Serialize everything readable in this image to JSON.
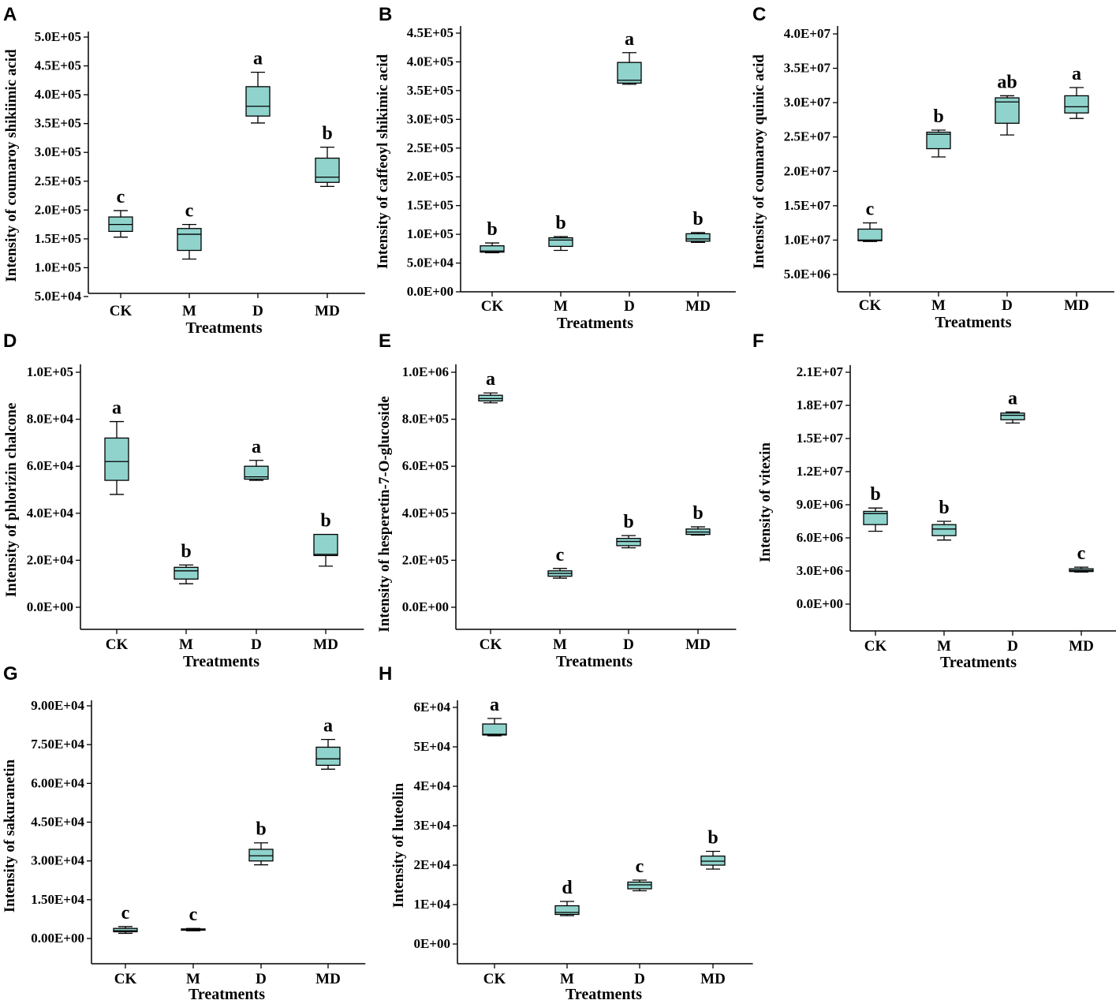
{
  "figure": {
    "colors": {
      "box_fill": "#8FD3CC",
      "stroke": "#000000",
      "background": "#ffffff"
    }
  },
  "chart_data": [
    {
      "panel": "A",
      "type": "box",
      "categories": [
        "CK",
        "M",
        "D",
        "MD"
      ],
      "xlabel": "Treatments",
      "ylabel": "Intensity of coumaroy shikiimic acid",
      "yticks": [
        50000,
        100000,
        150000,
        200000,
        250000,
        300000,
        350000,
        400000,
        450000,
        500000
      ],
      "ytick_labels": [
        "5.0E+04",
        "1.0E+05",
        "1.5E+05",
        "2.0E+05",
        "2.5E+05",
        "3.0E+05",
        "3.5E+05",
        "4.0E+05",
        "4.5E+05",
        "5.0E+05"
      ],
      "boxes": [
        {
          "min": 153000,
          "q1": 163000,
          "median": 175000,
          "q3": 188000,
          "max": 199000
        },
        {
          "min": 115000,
          "q1": 130000,
          "median": 158000,
          "q3": 168000,
          "max": 175000
        },
        {
          "min": 351000,
          "q1": 363000,
          "median": 380000,
          "q3": 414000,
          "max": 439000
        },
        {
          "min": 241000,
          "q1": 248000,
          "median": 257000,
          "q3": 290000,
          "max": 309000
        }
      ],
      "letters": [
        "c",
        "c",
        "a",
        "b"
      ]
    },
    {
      "panel": "B",
      "type": "box",
      "categories": [
        "CK",
        "M",
        "D",
        "MD"
      ],
      "xlabel": "Treatments",
      "ylabel": "Intensity of caffeoyl shikimic acid",
      "yticks": [
        0,
        50000,
        100000,
        150000,
        200000,
        250000,
        300000,
        350000,
        400000,
        450000
      ],
      "ytick_labels": [
        "0.0E+00",
        "5.0E+04",
        "1.0E+05",
        "1.5E+05",
        "2.0E+05",
        "2.5E+05",
        "3.0E+05",
        "3.5E+05",
        "4.0E+05",
        "4.5E+05"
      ],
      "boxes": [
        {
          "min": 68000,
          "q1": 69000,
          "median": 71000,
          "q3": 80000,
          "max": 85000
        },
        {
          "min": 72000,
          "q1": 79000,
          "median": 90000,
          "q3": 94000,
          "max": 96000
        },
        {
          "min": 361000,
          "q1": 363000,
          "median": 368000,
          "q3": 399000,
          "max": 416000
        },
        {
          "min": 86000,
          "q1": 88000,
          "median": 92000,
          "q3": 101000,
          "max": 103000
        }
      ],
      "letters": [
        "b",
        "b",
        "a",
        "b"
      ]
    },
    {
      "panel": "C",
      "type": "box",
      "categories": [
        "CK",
        "M",
        "D",
        "MD"
      ],
      "xlabel": "Treatments",
      "ylabel": "Intensity of coumaroy quinic acid",
      "yticks": [
        5000000,
        10000000,
        15000000,
        20000000,
        25000000,
        30000000,
        35000000,
        40000000
      ],
      "ytick_labels": [
        "5.0E+06",
        "1.0E+07",
        "1.5E+07",
        "2.0E+07",
        "2.5E+07",
        "3.0E+07",
        "3.5E+07",
        "4.0E+07"
      ],
      "boxes": [
        {
          "min": 9800000,
          "q1": 9900000,
          "median": 10000000,
          "q3": 11600000,
          "max": 12500000
        },
        {
          "min": 22100000,
          "q1": 23300000,
          "median": 25400000,
          "q3": 25700000,
          "max": 26000000
        },
        {
          "min": 25300000,
          "q1": 27000000,
          "median": 30100000,
          "q3": 30700000,
          "max": 31000000
        },
        {
          "min": 27700000,
          "q1": 28500000,
          "median": 29400000,
          "q3": 31000000,
          "max": 32200000
        }
      ],
      "letters": [
        "c",
        "b",
        "ab",
        "a"
      ]
    },
    {
      "panel": "D",
      "type": "box",
      "categories": [
        "CK",
        "M",
        "D",
        "MD"
      ],
      "xlabel": "Treatments",
      "ylabel": "Intensity of phlorizin chalcone",
      "yticks": [
        0,
        20000,
        40000,
        60000,
        80000,
        100000
      ],
      "ytick_labels": [
        "0.0E+00",
        "2.0E+04",
        "4.0E+04",
        "6.0E+04",
        "8.0E+04",
        "1.0E+05"
      ],
      "boxes": [
        {
          "min": 48000,
          "q1": 54000,
          "median": 62000,
          "q3": 72000,
          "max": 79000
        },
        {
          "min": 10000,
          "q1": 12000,
          "median": 15500,
          "q3": 17000,
          "max": 18000
        },
        {
          "min": 54000,
          "q1": 54500,
          "median": 55500,
          "q3": 60000,
          "max": 62500
        },
        {
          "min": 17500,
          "q1": 22000,
          "median": 22500,
          "q3": 31000,
          "max": 31000
        }
      ],
      "letters": [
        "a",
        "b",
        "a",
        "b"
      ]
    },
    {
      "panel": "E",
      "type": "box",
      "categories": [
        "CK",
        "M",
        "D",
        "MD"
      ],
      "xlabel": "Treatments",
      "ylabel": "Intensity of hesperetin-7-O-glucoside",
      "yticks": [
        0,
        200000,
        400000,
        600000,
        800000,
        1000000
      ],
      "ytick_labels": [
        "0.0E+00",
        "2.0E+05",
        "4.0E+05",
        "6.0E+05",
        "8.0E+05",
        "1.0E+06"
      ],
      "boxes": [
        {
          "min": 870000,
          "q1": 878000,
          "median": 888000,
          "q3": 902000,
          "max": 912000
        },
        {
          "min": 124000,
          "q1": 132000,
          "median": 144000,
          "q3": 155000,
          "max": 165000
        },
        {
          "min": 253000,
          "q1": 262000,
          "median": 280000,
          "q3": 293000,
          "max": 305000
        },
        {
          "min": 307000,
          "q1": 310000,
          "median": 320000,
          "q3": 333000,
          "max": 342000
        }
      ],
      "letters": [
        "a",
        "c",
        "b",
        "b"
      ]
    },
    {
      "panel": "F",
      "type": "box",
      "categories": [
        "CK",
        "M",
        "D",
        "MD"
      ],
      "xlabel": "Treatments",
      "ylabel": "Intensity of vitexin",
      "yticks": [
        0,
        3000000,
        6000000,
        9000000,
        12000000,
        15000000,
        18000000,
        21000000
      ],
      "ytick_labels": [
        "0.0E+00",
        "3.0E+06",
        "6.0E+06",
        "9.0E+06",
        "1.2E+07",
        "1.5E+07",
        "1.8E+07",
        "2.1E+07"
      ],
      "boxes": [
        {
          "min": 6600000,
          "q1": 7200000,
          "median": 8200000,
          "q3": 8400000,
          "max": 8700000
        },
        {
          "min": 5800000,
          "q1": 6200000,
          "median": 6800000,
          "q3": 7200000,
          "max": 7500000
        },
        {
          "min": 16400000,
          "q1": 16700000,
          "median": 17100000,
          "q3": 17300000,
          "max": 17400000
        },
        {
          "min": 2900000,
          "q1": 2950000,
          "median": 3050000,
          "q3": 3200000,
          "max": 3350000
        }
      ],
      "letters": [
        "b",
        "b",
        "a",
        "c"
      ]
    },
    {
      "panel": "G",
      "type": "box",
      "categories": [
        "CK",
        "M",
        "D",
        "MD"
      ],
      "xlabel": "Treatments",
      "ylabel": "Intensity of sakuranetin",
      "yticks": [
        0,
        15000,
        30000,
        45000,
        60000,
        75000,
        90000
      ],
      "ytick_labels": [
        "0.00E+00",
        "1.50E+04",
        "3.00E+04",
        "4.50E+04",
        "6.00E+04",
        "7.50E+04",
        "9.00E+04"
      ],
      "boxes": [
        {
          "min": 2000,
          "q1": 2600,
          "median": 3000,
          "q3": 3900,
          "max": 4600
        },
        {
          "min": 3000,
          "q1": 3200,
          "median": 3400,
          "q3": 3700,
          "max": 3900
        },
        {
          "min": 28500,
          "q1": 30000,
          "median": 32000,
          "q3": 34500,
          "max": 37000
        },
        {
          "min": 65500,
          "q1": 67000,
          "median": 69500,
          "q3": 74000,
          "max": 77000
        }
      ],
      "letters": [
        "c",
        "c",
        "b",
        "a"
      ]
    },
    {
      "panel": "H",
      "type": "box",
      "categories": [
        "CK",
        "M",
        "D",
        "MD"
      ],
      "xlabel": "Treatments",
      "ylabel": "Intensity of luteolin",
      "yticks": [
        0,
        10000,
        20000,
        30000,
        40000,
        50000,
        60000
      ],
      "ytick_labels": [
        "0E+00",
        "1E+04",
        "2E+04",
        "3E+04",
        "4E+04",
        "5E+04",
        "6E+04"
      ],
      "boxes": [
        {
          "min": 52800,
          "q1": 53000,
          "median": 53200,
          "q3": 55800,
          "max": 57200
        },
        {
          "min": 7200,
          "q1": 7500,
          "median": 8000,
          "q3": 9700,
          "max": 10800
        },
        {
          "min": 13500,
          "q1": 14000,
          "median": 15000,
          "q3": 15700,
          "max": 16200
        },
        {
          "min": 19000,
          "q1": 20000,
          "median": 21000,
          "q3": 22300,
          "max": 23500
        }
      ],
      "letters": [
        "a",
        "d",
        "c",
        "b"
      ]
    }
  ]
}
